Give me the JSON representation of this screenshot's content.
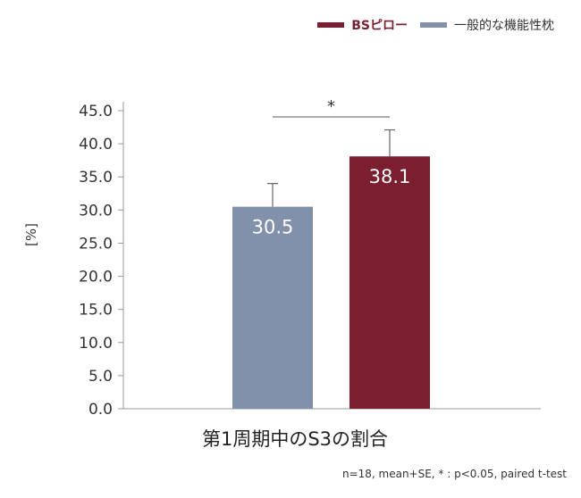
{
  "chart_data": {
    "type": "bar",
    "categories": [
      "一般的な機能性枕",
      "BSピロー"
    ],
    "values": [
      30.5,
      38.1
    ],
    "error_bars": [
      3.5,
      4.0
    ],
    "data_labels": [
      "30.5",
      "38.1"
    ],
    "colors": [
      "#8291ab",
      "#7b1e30"
    ],
    "series": [
      {
        "name": "BSピロー",
        "color": "#7b1e30"
      },
      {
        "name": "一般的な機能性枕",
        "color": "#8291ab"
      }
    ],
    "ylabel": "[%]",
    "xlabel": "第1周期中のS3の割合",
    "ylim": [
      0,
      45
    ],
    "yticks": [
      "0.0",
      "5.0",
      "10.0",
      "15.0",
      "20.0",
      "25.0",
      "30.0",
      "35.0",
      "40.0",
      "45.0"
    ],
    "significance": "*",
    "footnote": "n=18, mean+SE, * : p<0.05, paired t-test",
    "grid": false,
    "legend_position": "top-right"
  }
}
